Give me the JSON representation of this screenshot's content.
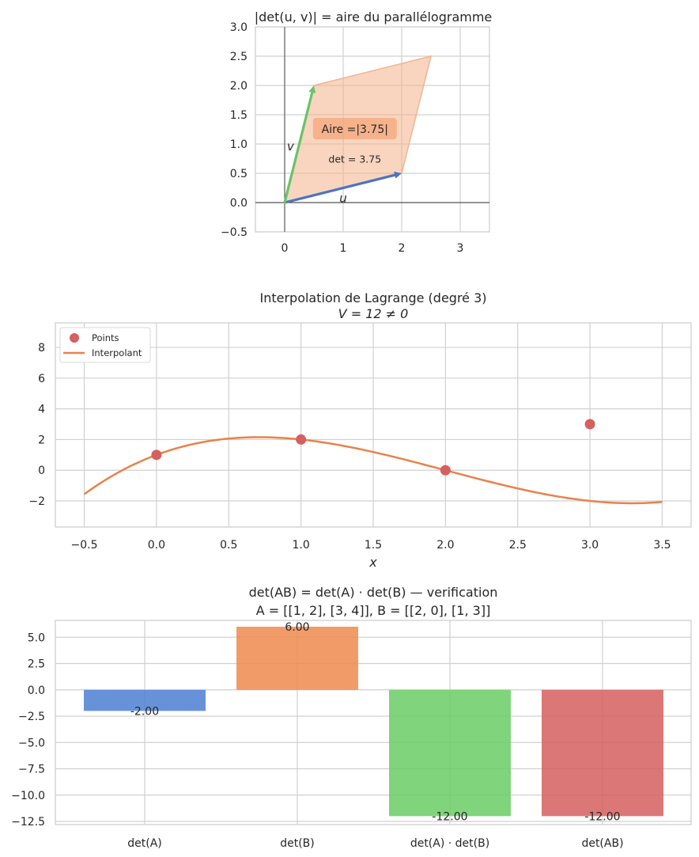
{
  "chart_data": [
    {
      "type": "area",
      "title": "|det(u, v)| = aire du parallélogramme",
      "xlabel": "",
      "ylabel": "",
      "xlim": [
        -0.5,
        3.5
      ],
      "ylim": [
        -0.5,
        3.0
      ],
      "xticks": [
        0,
        1,
        2,
        3
      ],
      "yticks": [
        -0.5,
        0.0,
        0.5,
        1.0,
        1.5,
        2.0,
        2.5,
        3.0
      ],
      "ytick_labels": [
        "−0.5",
        "0.0",
        "0.5",
        "1.0",
        "1.5",
        "2.0",
        "2.5",
        "3.0"
      ],
      "grid": true,
      "vectors": [
        {
          "name": "u",
          "x": 2,
          "y": 0.5,
          "color": "#4c72c4"
        },
        {
          "name": "v",
          "x": 0.5,
          "y": 2,
          "color": "#6ac36a"
        }
      ],
      "parallelogram": {
        "x": [
          0,
          2,
          2.5,
          0.5
        ],
        "y": [
          0,
          0.5,
          2.5,
          2
        ],
        "color": "#f4b28c"
      },
      "annotations": [
        {
          "text": "Aire =|3.75|",
          "x": 1.2,
          "y": 1.27
        },
        {
          "text": "det = 3.75",
          "x": 1.2,
          "y": 0.75
        }
      ]
    },
    {
      "type": "line",
      "title": "Interpolation de Lagrange (degré 3)",
      "subtitle": "V = 12 ≠ 0",
      "xlabel": "x",
      "ylabel": "",
      "xlim": [
        -0.7,
        3.7
      ],
      "ylim": [
        -3.7,
        9.6
      ],
      "xticks": [
        -0.5,
        0.0,
        0.5,
        1.0,
        1.5,
        2.0,
        2.5,
        3.0,
        3.5
      ],
      "xtick_labels": [
        "−0.5",
        "0.0",
        "0.5",
        "1.0",
        "1.5",
        "2.0",
        "2.5",
        "3.0",
        "3.5"
      ],
      "yticks": [
        -2,
        0,
        2,
        4,
        6,
        8
      ],
      "ytick_labels": [
        "−2",
        "0",
        "2",
        "4",
        "6",
        "8"
      ],
      "grid": true,
      "legend_position": "top-left",
      "points": {
        "name": "Points",
        "x": [
          0,
          1,
          2,
          3
        ],
        "y": [
          1,
          2,
          0,
          3
        ],
        "color": "#d65f5f"
      },
      "interpolant": {
        "name": "Interpolant",
        "x_range": [
          -0.5,
          3.5
        ],
        "coefficients": [
          1,
          3.5,
          -3,
          0.5
        ],
        "color": "#e8824a"
      }
    },
    {
      "type": "bar",
      "title": "det(AB) = det(A) · det(B) — verification",
      "subtitle": "A = [[1, 2], [3, 4]], B = [[2, 0], [1, 3]]",
      "xlabel": "",
      "ylabel": "",
      "categories": [
        "det(A)",
        "det(B)",
        "det(A) · det(B)",
        "det(AB)"
      ],
      "values": [
        -2.0,
        6.0,
        -12.0,
        -12.0
      ],
      "value_labels": [
        "-2.00",
        "6.00",
        "-12.00",
        "-12.00"
      ],
      "colors": [
        "#4c7fd4",
        "#ee8a4e",
        "#6acc64",
        "#d65f5f"
      ],
      "ylim": [
        -12.8,
        6.6
      ],
      "yticks": [
        -12.5,
        -10.0,
        -7.5,
        -5.0,
        -2.5,
        0.0,
        2.5,
        5.0
      ],
      "ytick_labels": [
        "−12.5",
        "−10.0",
        "−7.5",
        "−5.0",
        "−2.5",
        "0.0",
        "2.5",
        "5.0"
      ],
      "grid": true
    }
  ]
}
